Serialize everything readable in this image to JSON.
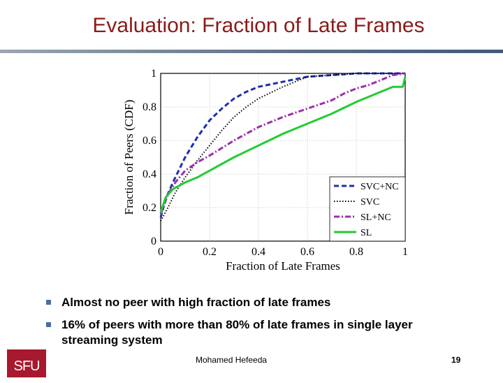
{
  "slide": {
    "title": "Evaluation: Fraction of Late Frames",
    "bullets": [
      "Almost no peer with high fraction of late frames",
      "16% of peers with more than 80% of late frames in single layer streaming system"
    ],
    "footer_author": "Mohamed  Hefeeda",
    "page_number": "19",
    "logo_text": "SFU",
    "colors": {
      "title": "#8b1a1a",
      "bullet": "#4a6ea0",
      "logo": "#a6192e"
    }
  },
  "chart_data": {
    "type": "line",
    "title": "",
    "xlabel": "Fraction of Late Frames",
    "ylabel": "Fraction of Peers (CDF)",
    "xlim": [
      0,
      1
    ],
    "ylim": [
      0,
      1
    ],
    "x_ticks": [
      "0",
      "0.2",
      "0.4",
      "0.6",
      "0.8",
      "1"
    ],
    "y_ticks": [
      "0",
      "0.2",
      "0.4",
      "0.6",
      "0.8",
      "1"
    ],
    "grid": true,
    "legend_position": "bottom-right",
    "series": [
      {
        "name": "SVC+NC",
        "color": "#1f2fb0",
        "dash": "dashed",
        "x": [
          0,
          0.02,
          0.05,
          0.1,
          0.15,
          0.2,
          0.25,
          0.3,
          0.35,
          0.4,
          0.5,
          0.6,
          0.7,
          0.8,
          0.9,
          1.0
        ],
        "y": [
          0.14,
          0.25,
          0.35,
          0.5,
          0.62,
          0.72,
          0.79,
          0.85,
          0.89,
          0.92,
          0.95,
          0.98,
          0.99,
          1.0,
          1.0,
          1.0
        ]
      },
      {
        "name": "SVC",
        "color": "#000000",
        "dash": "dotted",
        "x": [
          0,
          0.03,
          0.06,
          0.1,
          0.15,
          0.2,
          0.25,
          0.3,
          0.35,
          0.4,
          0.5,
          0.6,
          0.7,
          0.8,
          0.9,
          1.0
        ],
        "y": [
          0.12,
          0.2,
          0.29,
          0.38,
          0.48,
          0.57,
          0.66,
          0.74,
          0.8,
          0.85,
          0.92,
          0.98,
          0.99,
          1.0,
          1.0,
          1.0
        ]
      },
      {
        "name": "SL+NC",
        "color": "#9b30a8",
        "dash": "dashdot",
        "x": [
          0,
          0.03,
          0.06,
          0.1,
          0.15,
          0.2,
          0.3,
          0.4,
          0.5,
          0.6,
          0.7,
          0.75,
          0.8,
          0.85,
          0.9,
          0.95,
          1.0
        ],
        "y": [
          0.16,
          0.28,
          0.35,
          0.42,
          0.47,
          0.51,
          0.6,
          0.68,
          0.74,
          0.79,
          0.84,
          0.88,
          0.91,
          0.93,
          0.96,
          0.99,
          1.0
        ]
      },
      {
        "name": "SL",
        "color": "#22cc33",
        "dash": "solid",
        "x": [
          0,
          0.02,
          0.05,
          0.1,
          0.15,
          0.2,
          0.3,
          0.4,
          0.5,
          0.6,
          0.7,
          0.8,
          0.85,
          0.9,
          0.95,
          0.99,
          1.0
        ],
        "y": [
          0.17,
          0.26,
          0.31,
          0.35,
          0.38,
          0.42,
          0.5,
          0.57,
          0.64,
          0.7,
          0.76,
          0.83,
          0.86,
          0.89,
          0.92,
          0.92,
          0.98
        ]
      }
    ]
  }
}
